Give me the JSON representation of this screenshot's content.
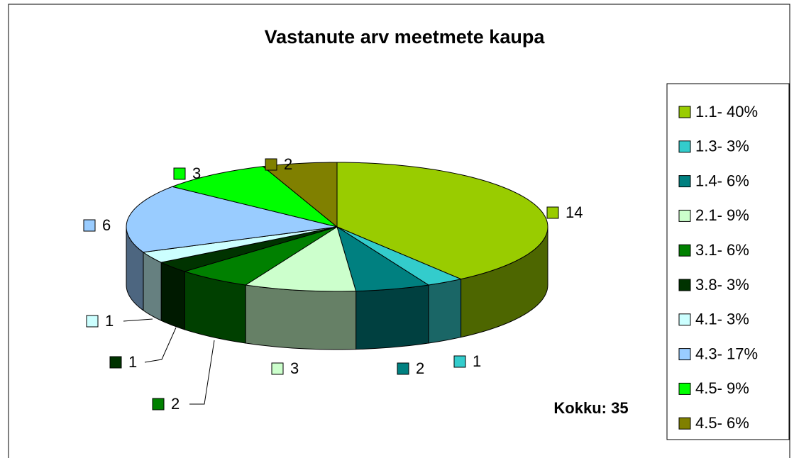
{
  "chart_data": {
    "type": "pie3d",
    "title": "Vastanute arv meetmete kaupa",
    "categories": [
      "1.1- 40%",
      "1.3- 3%",
      "1.4- 6%",
      "2.1- 9%",
      "3.1- 6%",
      "3.8- 3%",
      "4.1- 3%",
      "4.3- 17%",
      "4.5- 9%",
      "4.5- 6%"
    ],
    "values": [
      14,
      1,
      2,
      3,
      2,
      1,
      1,
      6,
      3,
      2
    ],
    "colors": [
      "#99cc00",
      "#33cccc",
      "#008080",
      "#ccffcc",
      "#008000",
      "#003300",
      "#ccffff",
      "#99ccff",
      "#00ff00",
      "#808000"
    ],
    "annotation": "Kokku: 35",
    "legend": "right"
  }
}
